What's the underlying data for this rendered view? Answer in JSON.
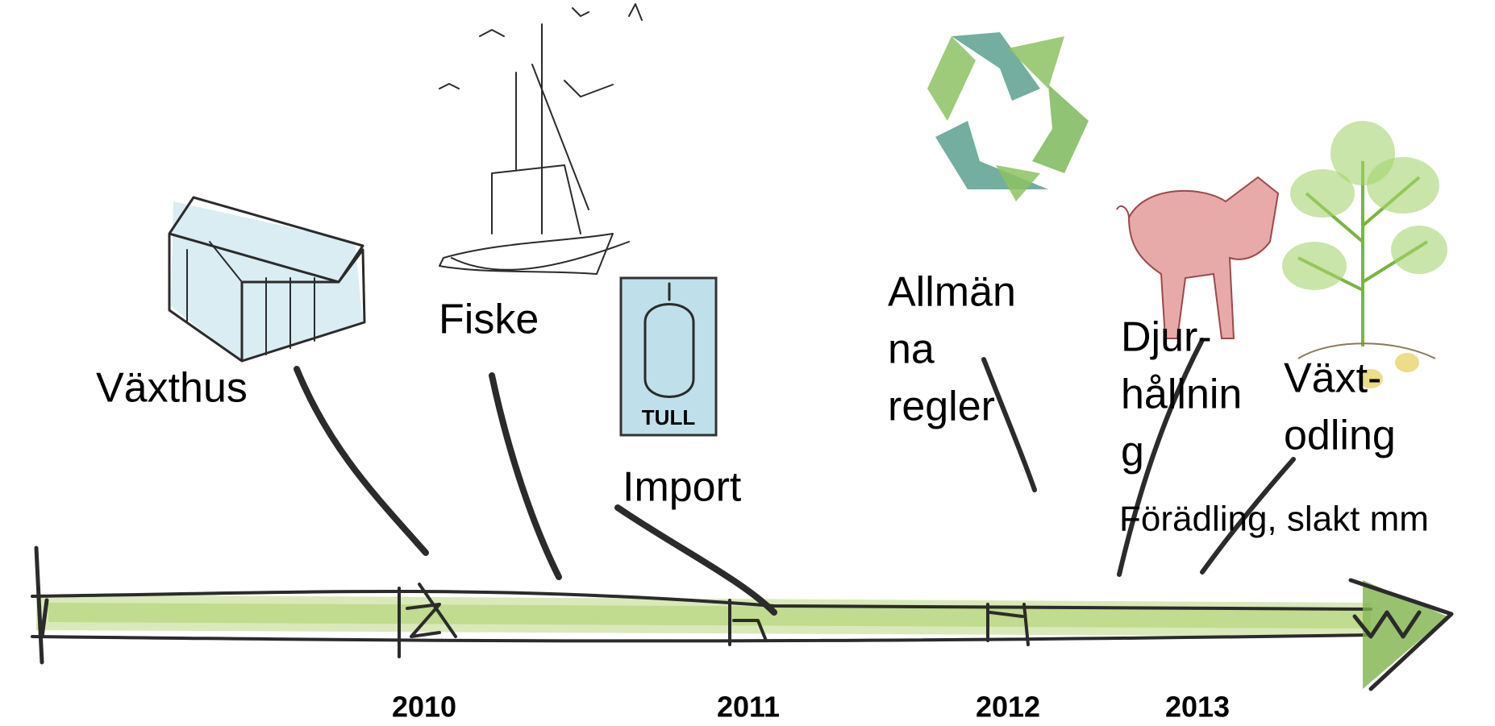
{
  "events": [
    {
      "label": [
        "Växthus"
      ]
    },
    {
      "label": [
        "Fiske"
      ]
    },
    {
      "label": [
        "Import"
      ],
      "icon_text": "TULL"
    },
    {
      "label": [
        "Allmän",
        "na",
        "regler"
      ]
    },
    {
      "label": [
        "Djur-",
        "hållnin",
        "g"
      ]
    },
    {
      "label": [
        "Växt-",
        "odling"
      ]
    },
    {
      "label": [
        "Förädling, slakt mm"
      ]
    }
  ],
  "years": [
    "2010",
    "2011",
    "2012",
    "2013"
  ]
}
